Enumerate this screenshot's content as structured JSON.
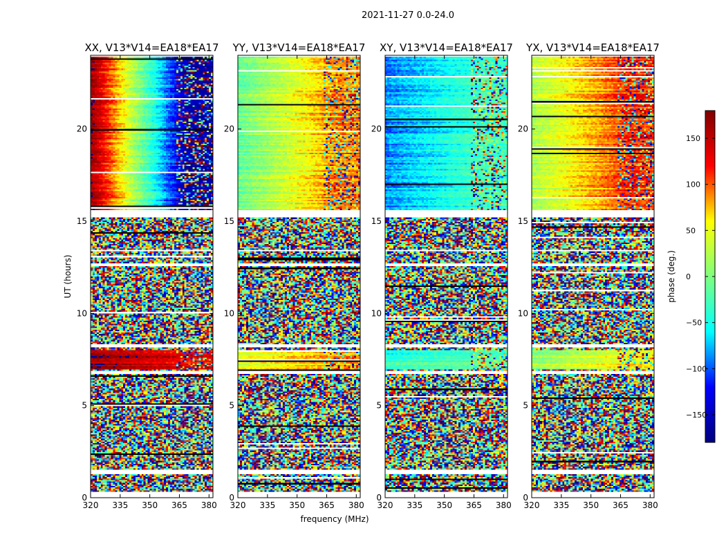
{
  "figure": {
    "suptitle": "2021-11-27 0.0-24.0",
    "xlabel": "frequency (MHz)",
    "ylabel": "UT (hours)",
    "colorbar_label": "phase (deg.)",
    "colorbar_ticks": [
      150,
      100,
      50,
      0,
      -50,
      -100,
      -150
    ],
    "colorbar_range": [
      -180,
      180
    ],
    "colormap": [
      "#00007f",
      "#0000ff",
      "#00ffff",
      "#7fff7f",
      "#ffff00",
      "#ff0000",
      "#7f0000"
    ]
  },
  "chart_data": [
    {
      "type": "heatmap",
      "title": "XX, V13*V14=EA18*EA17",
      "xlabel": "frequency (MHz)",
      "ylabel": "UT (hours)",
      "xlim": [
        320,
        382
      ],
      "ylim": [
        0,
        24
      ],
      "xticks": [
        320,
        335,
        350,
        365,
        380
      ],
      "yticks": [
        0,
        5,
        10,
        15,
        20
      ],
      "value": "phase (deg.)",
      "coherent_bands": [
        {
          "ut_range": [
            15.6,
            24.0
          ],
          "phase_low_freq": 165,
          "phase_high_freq": -160
        },
        {
          "ut_range": [
            7.0,
            8.0
          ],
          "phase_low_freq": 170,
          "phase_high_freq": 130
        }
      ]
    },
    {
      "type": "heatmap",
      "title": "YY, V13*V14=EA18*EA17",
      "xlim": [
        320,
        382
      ],
      "ylim": [
        0,
        24
      ],
      "xticks": [
        320,
        335,
        350,
        365,
        380
      ],
      "yticks": [
        0,
        5,
        10,
        15,
        20
      ],
      "coherent_bands": [
        {
          "ut_range": [
            15.6,
            24.0
          ],
          "phase_low_freq": -10,
          "phase_high_freq": 90
        },
        {
          "ut_range": [
            7.0,
            8.0
          ],
          "phase_low_freq": 40,
          "phase_high_freq": 80
        }
      ]
    },
    {
      "type": "heatmap",
      "title": "XY, V13*V14=EA18*EA17",
      "xlim": [
        320,
        382
      ],
      "ylim": [
        0,
        24
      ],
      "xticks": [
        320,
        335,
        350,
        365,
        380
      ],
      "yticks": [
        0,
        5,
        10,
        15,
        20
      ],
      "coherent_bands": [
        {
          "ut_range": [
            15.6,
            24.0
          ],
          "phase_low_freq": -90,
          "phase_high_freq": -30
        },
        {
          "ut_range": [
            7.0,
            8.0
          ],
          "phase_low_freq": -40,
          "phase_high_freq": -20
        }
      ]
    },
    {
      "type": "heatmap",
      "title": "YX, V13*V14=EA18*EA17",
      "xlim": [
        320,
        382
      ],
      "ylim": [
        0,
        24
      ],
      "xticks": [
        320,
        335,
        350,
        365,
        380
      ],
      "yticks": [
        0,
        5,
        10,
        15,
        20
      ],
      "coherent_bands": [
        {
          "ut_range": [
            15.6,
            24.0
          ],
          "phase_low_freq": 20,
          "phase_high_freq": 110
        },
        {
          "ut_range": [
            7.0,
            8.0
          ],
          "phase_low_freq": 10,
          "phase_high_freq": 60
        }
      ]
    }
  ]
}
